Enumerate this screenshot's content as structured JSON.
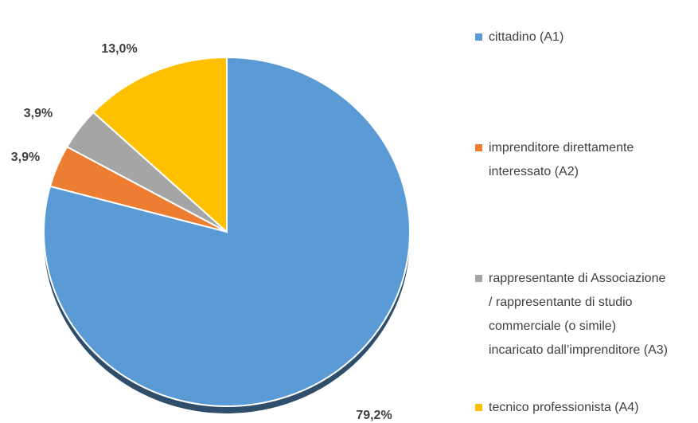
{
  "chart_data": {
    "type": "pie",
    "categories": [
      "cittadino (A1)",
      "imprenditore direttamente interessato (A2)",
      "rappresentante di Associazione / rappresentante di studio commerciale (o simile) incaricato dall’imprenditore (A3)",
      "tecnico professionista (A4)"
    ],
    "values": [
      79.2,
      3.9,
      3.9,
      13.0
    ],
    "value_labels": [
      "79,2%",
      "3,9%",
      "3,9%",
      "13,0%"
    ],
    "colors": [
      "#5b9bd5",
      "#ed7d31",
      "#a5a5a5",
      "#ffc000"
    ],
    "legend": "right"
  }
}
